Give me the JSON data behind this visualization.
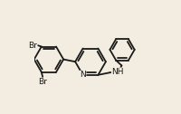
{
  "background_color": "#f2ede0",
  "bond_color": "#1a1a1a",
  "text_color": "#1a1a1a",
  "bond_width": 1.3,
  "font_size": 6.5,
  "label_N": "N",
  "label_NH": "NH",
  "label_Br1": "Br",
  "label_Br2": "Br"
}
